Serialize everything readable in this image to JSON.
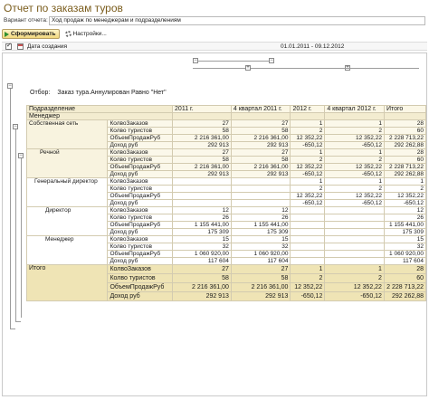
{
  "window": {
    "title": "Отчет по заказам туров"
  },
  "variant": {
    "label": "Вариант отчета:",
    "value": "Ход продаж по менеджерам и подразделениям"
  },
  "toolbar": {
    "generate_label": "Сформировать",
    "settings_label": "Настройки..."
  },
  "settings": {
    "name": "Дата создания",
    "value": "01.01.2011 - 09.12.2012",
    "checked": true
  },
  "report": {
    "filter_label": "Отбор:",
    "filter_value": "Заказ тура.Аннулирован Равно \"Нет\"",
    "headers": {
      "dim1": "Подразделение",
      "dim2": "Менеджер",
      "columns": [
        "2011 г.",
        "4 квартал 2011 г.",
        "2012 г.",
        "4 квартал 2012 г.",
        "Итого"
      ]
    },
    "resources": [
      "КолвоЗаказов",
      "Колво туристов",
      "ОбъемПродажРуб",
      "Доход руб"
    ],
    "groups": [
      {
        "name": "Собственная сеть",
        "rows": [
          [
            "27",
            "27",
            "1",
            "1",
            "28"
          ],
          [
            "58",
            "58",
            "2",
            "2",
            "60"
          ],
          [
            "2 216 361,00",
            "2 216 361,00",
            "12 352,22",
            "12 352,22",
            "2 228 713,22"
          ],
          [
            "292 913",
            "292 913",
            "-650,12",
            "-650,12",
            "292 262,88"
          ]
        ]
      },
      {
        "name": "Речной",
        "rows": [
          [
            "27",
            "27",
            "1",
            "1",
            "28"
          ],
          [
            "58",
            "58",
            "2",
            "2",
            "60"
          ],
          [
            "2 216 361,00",
            "2 216 361,00",
            "12 352,22",
            "12 352,22",
            "2 228 713,22"
          ],
          [
            "292 913",
            "292 913",
            "-650,12",
            "-650,12",
            "292 262,88"
          ]
        ]
      },
      {
        "name": "Генеральный директор",
        "rows": [
          [
            "",
            "",
            "1",
            "1",
            "1"
          ],
          [
            "",
            "",
            "2",
            "2",
            "2"
          ],
          [
            "",
            "",
            "12 352,22",
            "12 352,22",
            "12 352,22"
          ],
          [
            "",
            "",
            "-650,12",
            "-650,12",
            "-650,12"
          ]
        ]
      },
      {
        "name": "Директор",
        "rows": [
          [
            "12",
            "12",
            "",
            "",
            "12"
          ],
          [
            "26",
            "26",
            "",
            "",
            "26"
          ],
          [
            "1 155 441,00",
            "1 155 441,00",
            "",
            "",
            "1 155 441,00"
          ],
          [
            "175 309",
            "175 309",
            "",
            "",
            "175 309"
          ]
        ]
      },
      {
        "name": "Менеджер",
        "rows": [
          [
            "15",
            "15",
            "",
            "",
            "15"
          ],
          [
            "32",
            "32",
            "",
            "",
            "32"
          ],
          [
            "1 060 920,00",
            "1 060 920,00",
            "",
            "",
            "1 060 920,00"
          ],
          [
            "117 604",
            "117 604",
            "",
            "",
            "117 604"
          ]
        ]
      }
    ],
    "total": {
      "label": "Итого",
      "rows": [
        [
          "27",
          "27",
          "1",
          "1",
          "28"
        ],
        [
          "58",
          "58",
          "2",
          "2",
          "60"
        ],
        [
          "2 216 361,00",
          "2 216 361,00",
          "12 352,22",
          "12 352,22",
          "2 228 713,22"
        ],
        [
          "292 913",
          "292 913",
          "-650,12",
          "-650,12",
          "292 262,88"
        ]
      ]
    }
  }
}
